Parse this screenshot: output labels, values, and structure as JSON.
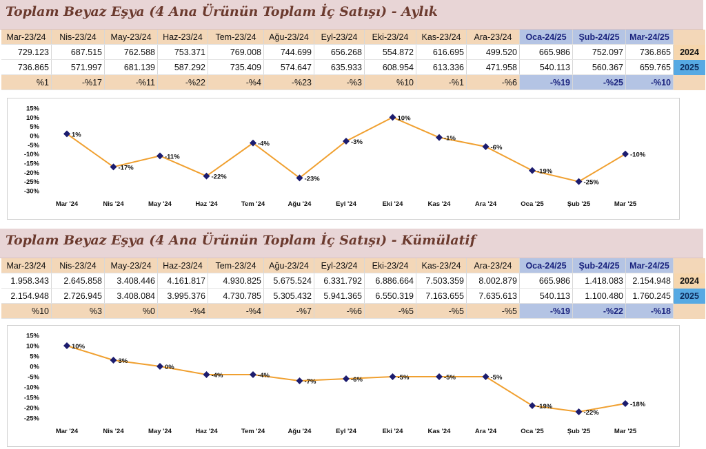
{
  "colors": {
    "line": "#f0a030",
    "marker": "#1c1c6e",
    "header_bg": "#f3d7b8",
    "header_blue_bg": "#b4c4e4",
    "title_bg": "#e8d5d6"
  },
  "sections": [
    {
      "title": "Toplam Beyaz Eşya (4 Ana Ürünün Toplam İç Satışı) - Aylık",
      "headers": [
        "Mar-23/24",
        "Nis-23/24",
        "May-23/24",
        "Haz-23/24",
        "Tem-23/24",
        "Ağu-23/24",
        "Eyl-23/24",
        "Eki-23/24",
        "Kas-23/24",
        "Ara-23/24",
        "Oca-24/25",
        "Şub-24/25",
        "Mar-24/25"
      ],
      "row2024": [
        "729.123",
        "687.515",
        "762.588",
        "753.371",
        "769.008",
        "744.699",
        "656.268",
        "554.872",
        "616.695",
        "499.520",
        "665.986",
        "752.097",
        "736.865"
      ],
      "row2025": [
        "736.865",
        "571.997",
        "681.139",
        "587.292",
        "735.409",
        "574.647",
        "635.933",
        "608.954",
        "613.336",
        "471.958",
        "540.113",
        "560.367",
        "659.765"
      ],
      "pct": [
        "%1",
        "-%17",
        "-%11",
        "-%22",
        "-%4",
        "-%23",
        "-%3",
        "%10",
        "-%1",
        "-%6",
        "-%19",
        "-%25",
        "-%10"
      ],
      "year_a": "2024",
      "year_b": "2025"
    },
    {
      "title": "Toplam Beyaz Eşya (4 Ana Ürünün Toplam İç Satışı) - Kümülatif",
      "headers": [
        "Mar-23/24",
        "Nis-23/24",
        "May-23/24",
        "Haz-23/24",
        "Tem-23/24",
        "Ağu-23/24",
        "Eyl-23/24",
        "Eki-23/24",
        "Kas-23/24",
        "Ara-23/24",
        "Oca-24/25",
        "Şub-24/25",
        "Mar-24/25"
      ],
      "row2024": [
        "1.958.343",
        "2.645.858",
        "3.408.446",
        "4.161.817",
        "4.930.825",
        "5.675.524",
        "6.331.792",
        "6.886.664",
        "7.503.359",
        "8.002.879",
        "665.986",
        "1.418.083",
        "2.154.948"
      ],
      "row2025": [
        "2.154.948",
        "2.726.945",
        "3.408.084",
        "3.995.376",
        "4.730.785",
        "5.305.432",
        "5.941.365",
        "6.550.319",
        "7.163.655",
        "7.635.613",
        "540.113",
        "1.100.480",
        "1.760.245"
      ],
      "pct": [
        "%10",
        "%3",
        "%0",
        "-%4",
        "-%4",
        "-%7",
        "-%6",
        "-%5",
        "-%5",
        "-%5",
        "-%19",
        "-%22",
        "-%18"
      ],
      "year_a": "2024",
      "year_b": "2025"
    }
  ],
  "chart_data": [
    {
      "type": "line",
      "categories": [
        "Mar '24",
        "Nis '24",
        "May '24",
        "Haz '24",
        "Tem '24",
        "Ağu '24",
        "Eyl '24",
        "Eki '24",
        "Kas '24",
        "Ara '24",
        "Oca '25",
        "Şub '25",
        "Mar '25"
      ],
      "values": [
        1,
        -17,
        -11,
        -22,
        -4,
        -23,
        -3,
        10,
        -1,
        -6,
        -19,
        -25,
        -10
      ],
      "data_labels": [
        "1%",
        "-17%",
        "-11%",
        "-22%",
        "-4%",
        "-23%",
        "-3%",
        "10%",
        "-1%",
        "-6%",
        "-19%",
        "-25%",
        "-10%"
      ],
      "yticks": [
        "15%",
        "10%",
        "5%",
        "0%",
        "-5%",
        "-10%",
        "-15%",
        "-20%",
        "-25%",
        "-30%"
      ],
      "ylim": [
        -30,
        15
      ],
      "grid": false
    },
    {
      "type": "line",
      "categories": [
        "Mar '24",
        "Nis '24",
        "May '24",
        "Haz '24",
        "Tem '24",
        "Ağu '24",
        "Eyl '24",
        "Eki '24",
        "Kas '24",
        "Ara '24",
        "Oca '25",
        "Şub '25",
        "Mar '25"
      ],
      "values": [
        10,
        3,
        0,
        -4,
        -4,
        -7,
        -6,
        -5,
        -5,
        -5,
        -19,
        -22,
        -18
      ],
      "data_labels": [
        "10%",
        "3%",
        "0%",
        "-4%",
        "-4%",
        "-7%",
        "-6%",
        "-5%",
        "-5%",
        "-5%",
        "-19%",
        "-22%",
        "-18%"
      ],
      "yticks": [
        "15%",
        "10%",
        "5%",
        "0%",
        "-5%",
        "-10%",
        "-15%",
        "-20%",
        "-25%"
      ],
      "ylim": [
        -25,
        15
      ],
      "grid": false
    }
  ]
}
